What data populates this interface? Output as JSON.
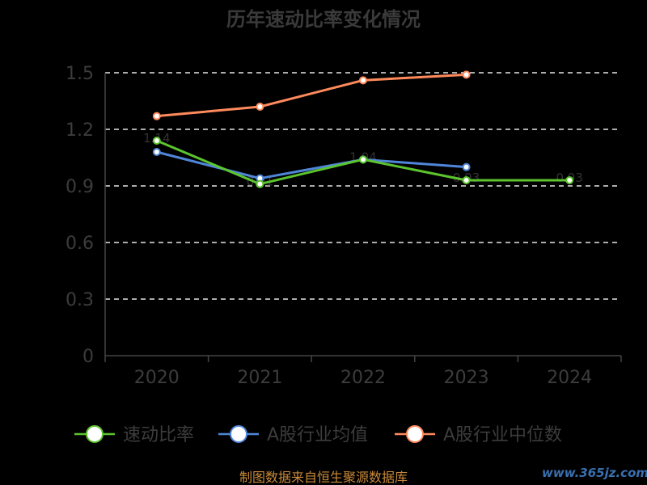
{
  "chart_data": {
    "type": "line",
    "title": "历年速动比率变化情况",
    "categories": [
      "2020",
      "2021",
      "2022",
      "2023",
      "2024"
    ],
    "ylim": [
      0,
      1.5
    ],
    "yticks": [
      "0",
      "0.3",
      "0.6",
      "0.9",
      "1.2",
      "1.5"
    ],
    "grid": true,
    "legend_position": "bottom",
    "series": [
      {
        "name": "速动比率",
        "color": "#5cc42e",
        "values": [
          1.14,
          0.91,
          1.04,
          0.93,
          0.93
        ]
      },
      {
        "name": "A股行业均值",
        "color": "#4f86d9",
        "values": [
          1.08,
          0.94,
          1.04,
          1.0,
          null
        ]
      },
      {
        "name": "A股行业中位数",
        "color": "#ff8a5c",
        "values": [
          1.27,
          1.32,
          1.46,
          1.49,
          null
        ]
      }
    ]
  },
  "footer": {
    "source": "制图数据来自恒生聚源数据库",
    "watermark": "www.365jz.com"
  }
}
